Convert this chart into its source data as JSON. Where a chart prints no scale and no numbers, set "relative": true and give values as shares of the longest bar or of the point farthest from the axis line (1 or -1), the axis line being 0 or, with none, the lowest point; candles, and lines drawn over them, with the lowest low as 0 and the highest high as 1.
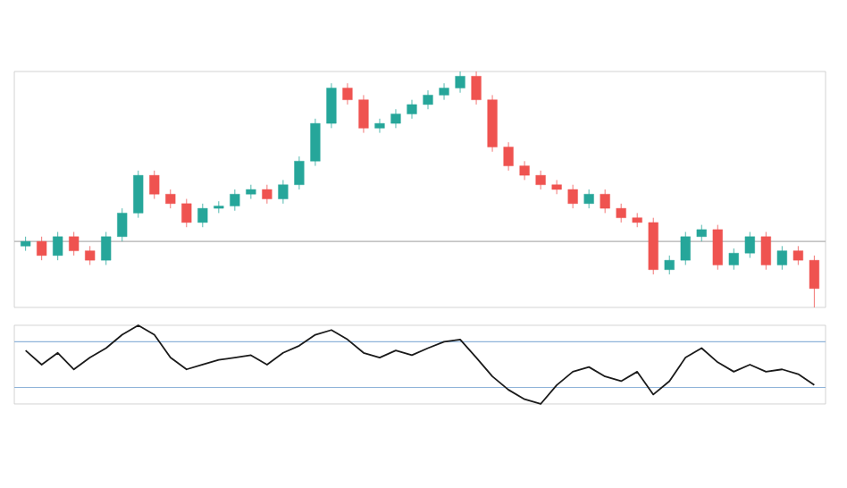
{
  "chart_data": [
    {
      "type": "candlestick",
      "relative": true,
      "categories": [
        null,
        null,
        null,
        null,
        null,
        null,
        null,
        null,
        null,
        null,
        null,
        null,
        null,
        null,
        null,
        null,
        null,
        null,
        null,
        null,
        null,
        null,
        null,
        null,
        null,
        null,
        null,
        null,
        null,
        null,
        null,
        null,
        null,
        null,
        null,
        null,
        null,
        null,
        null,
        null,
        null,
        null,
        null,
        null,
        null,
        null,
        null,
        null,
        null,
        null
      ],
      "ohlc": [
        [
          0.26,
          0.3,
          0.24,
          0.28
        ],
        [
          0.28,
          0.3,
          0.2,
          0.22
        ],
        [
          0.22,
          0.32,
          0.2,
          0.3
        ],
        [
          0.3,
          0.32,
          0.22,
          0.24
        ],
        [
          0.24,
          0.26,
          0.18,
          0.2
        ],
        [
          0.2,
          0.32,
          0.18,
          0.3
        ],
        [
          0.3,
          0.42,
          0.28,
          0.4
        ],
        [
          0.4,
          0.58,
          0.38,
          0.56
        ],
        [
          0.56,
          0.58,
          0.46,
          0.48
        ],
        [
          0.48,
          0.5,
          0.42,
          0.44
        ],
        [
          0.44,
          0.46,
          0.34,
          0.36
        ],
        [
          0.36,
          0.44,
          0.34,
          0.42
        ],
        [
          0.42,
          0.45,
          0.4,
          0.43
        ],
        [
          0.43,
          0.5,
          0.41,
          0.48
        ],
        [
          0.48,
          0.52,
          0.46,
          0.5
        ],
        [
          0.5,
          0.52,
          0.44,
          0.46
        ],
        [
          0.46,
          0.54,
          0.44,
          0.52
        ],
        [
          0.52,
          0.64,
          0.5,
          0.62
        ],
        [
          0.62,
          0.8,
          0.6,
          0.78
        ],
        [
          0.78,
          0.95,
          0.76,
          0.93
        ],
        [
          0.93,
          0.95,
          0.86,
          0.88
        ],
        [
          0.88,
          0.9,
          0.74,
          0.76
        ],
        [
          0.76,
          0.8,
          0.74,
          0.78
        ],
        [
          0.78,
          0.84,
          0.76,
          0.82
        ],
        [
          0.82,
          0.88,
          0.8,
          0.86
        ],
        [
          0.86,
          0.92,
          0.84,
          0.9
        ],
        [
          0.9,
          0.95,
          0.88,
          0.93
        ],
        [
          0.93,
          1.0,
          0.91,
          0.98
        ],
        [
          0.98,
          1.0,
          0.86,
          0.88
        ],
        [
          0.88,
          0.9,
          0.66,
          0.68
        ],
        [
          0.68,
          0.7,
          0.58,
          0.6
        ],
        [
          0.6,
          0.62,
          0.54,
          0.56
        ],
        [
          0.56,
          0.58,
          0.5,
          0.52
        ],
        [
          0.52,
          0.54,
          0.48,
          0.5
        ],
        [
          0.5,
          0.52,
          0.42,
          0.44
        ],
        [
          0.44,
          0.5,
          0.42,
          0.48
        ],
        [
          0.48,
          0.5,
          0.4,
          0.42
        ],
        [
          0.42,
          0.44,
          0.36,
          0.38
        ],
        [
          0.38,
          0.4,
          0.34,
          0.36
        ],
        [
          0.36,
          0.38,
          0.14,
          0.16
        ],
        [
          0.16,
          0.22,
          0.14,
          0.2
        ],
        [
          0.2,
          0.32,
          0.18,
          0.3
        ],
        [
          0.3,
          0.35,
          0.28,
          0.33
        ],
        [
          0.33,
          0.35,
          0.16,
          0.18
        ],
        [
          0.18,
          0.25,
          0.16,
          0.23
        ],
        [
          0.23,
          0.32,
          0.21,
          0.3
        ],
        [
          0.3,
          0.32,
          0.16,
          0.18
        ],
        [
          0.18,
          0.26,
          0.16,
          0.24
        ],
        [
          0.24,
          0.26,
          0.18,
          0.2
        ],
        [
          0.2,
          0.22,
          0.0,
          0.08
        ]
      ],
      "colors": [
        "#26a69a",
        "#ef5350",
        "#26a69a",
        "#ef5350",
        "#ef5350",
        "#26a69a",
        "#26a69a",
        "#26a69a",
        "#ef5350",
        "#ef5350",
        "#ef5350",
        "#26a69a",
        "#26a69a",
        "#26a69a",
        "#26a69a",
        "#ef5350",
        "#26a69a",
        "#26a69a",
        "#26a69a",
        "#26a69a",
        "#ef5350",
        "#ef5350",
        "#26a69a",
        "#26a69a",
        "#26a69a",
        "#26a69a",
        "#26a69a",
        "#26a69a",
        "#ef5350",
        "#ef5350",
        "#ef5350",
        "#ef5350",
        "#ef5350",
        "#ef5350",
        "#ef5350",
        "#26a69a",
        "#ef5350",
        "#ef5350",
        "#ef5350",
        "#ef5350",
        "#26a69a",
        "#26a69a",
        "#26a69a",
        "#ef5350",
        "#26a69a",
        "#26a69a",
        "#ef5350",
        "#26a69a",
        "#ef5350",
        "#ef5350"
      ],
      "ref_lines": [
        {
          "axis": "y",
          "value": 0.28,
          "color": "#b0b0b0"
        }
      ]
    },
    {
      "type": "line",
      "relative": true,
      "categories": [
        null,
        null,
        null,
        null,
        null,
        null,
        null,
        null,
        null,
        null,
        null,
        null,
        null,
        null,
        null,
        null,
        null,
        null,
        null,
        null,
        null,
        null,
        null,
        null,
        null,
        null,
        null,
        null,
        null,
        null,
        null,
        null,
        null,
        null,
        null,
        null,
        null,
        null,
        null,
        null,
        null,
        null,
        null,
        null,
        null,
        null,
        null,
        null,
        null,
        null
      ],
      "series": [
        {
          "color": "#1a1a1a",
          "values": [
            0.68,
            0.5,
            0.65,
            0.44,
            0.59,
            0.71,
            0.88,
            1.0,
            0.88,
            0.59,
            0.44,
            0.5,
            0.56,
            0.59,
            0.62,
            0.5,
            0.65,
            0.74,
            0.88,
            0.94,
            0.82,
            0.65,
            0.59,
            0.68,
            0.62,
            0.71,
            0.79,
            0.82,
            0.59,
            0.35,
            0.18,
            0.06,
            0.0,
            0.24,
            0.41,
            0.47,
            0.35,
            0.29,
            0.41,
            0.12,
            0.29,
            0.59,
            0.71,
            0.53,
            0.41,
            0.5,
            0.41,
            0.44,
            0.38,
            0.24
          ]
        }
      ],
      "ref_lines": [
        {
          "axis": "y",
          "value": 0.79,
          "color": "#8fb3d9"
        },
        {
          "axis": "y",
          "value": 0.21,
          "color": "#8fb3d9"
        }
      ]
    }
  ]
}
